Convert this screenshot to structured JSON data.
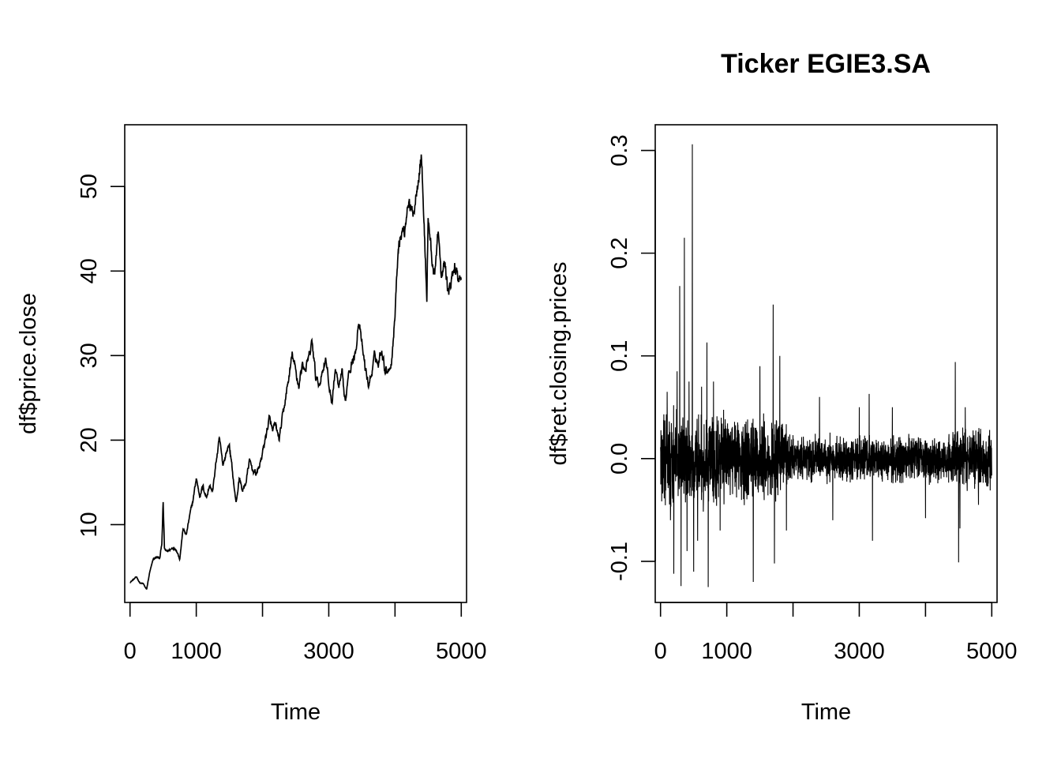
{
  "figure": {
    "title": "Ticker EGIE3.SA"
  },
  "chart_data": [
    {
      "type": "line",
      "title": "",
      "xlabel": "Time",
      "ylabel": "df$price.close",
      "xlim": [
        -80,
        5080
      ],
      "ylim": [
        0.8,
        57.3
      ],
      "xticks": [
        0,
        1000,
        2000,
        3000,
        4000,
        5000
      ],
      "xtick_labels": [
        "0",
        "1000",
        "",
        "3000",
        "",
        "5000"
      ],
      "yticks": [
        10,
        20,
        30,
        40,
        50
      ],
      "ytick_labels": [
        "10",
        "20",
        "30",
        "40",
        "50"
      ],
      "grid": false,
      "legend": "none",
      "line_color": "#000000",
      "series": [
        {
          "x": [
            0,
            100,
            150,
            200,
            250,
            300,
            350,
            400,
            450,
            480,
            500,
            520,
            550,
            600,
            650,
            700,
            750,
            800,
            850,
            900,
            950,
            1000,
            1050,
            1100,
            1150,
            1200,
            1250,
            1300,
            1350,
            1400,
            1450,
            1500,
            1550,
            1600,
            1650,
            1700,
            1750,
            1800,
            1850,
            1900,
            1950,
            2000,
            2050,
            2100,
            2150,
            2200,
            2250,
            2300,
            2350,
            2400,
            2450,
            2500,
            2550,
            2600,
            2650,
            2700,
            2750,
            2800,
            2850,
            2900,
            2950,
            3000,
            3050,
            3100,
            3150,
            3200,
            3250,
            3300,
            3350,
            3400,
            3450,
            3500,
            3550,
            3600,
            3650,
            3700,
            3750,
            3800,
            3850,
            3900,
            3950,
            4000,
            4050,
            4100,
            4150,
            4200,
            4250,
            4300,
            4350,
            4400,
            4450,
            4480,
            4500,
            4550,
            4600,
            4650,
            4700,
            4750,
            4800,
            4850,
            4900,
            4950,
            5000
          ],
          "y": [
            3.2,
            3.8,
            3.1,
            3.0,
            2.3,
            4.5,
            5.8,
            6.2,
            6.0,
            7.8,
            12.6,
            7.1,
            6.8,
            7.0,
            7.3,
            7.1,
            6.0,
            9.5,
            8.8,
            11.0,
            12.8,
            15.5,
            13.5,
            14.5,
            13.3,
            14.6,
            14.0,
            17.5,
            20.0,
            17.0,
            18.5,
            19.5,
            16.0,
            12.5,
            15.5,
            14.0,
            15.0,
            17.5,
            16.5,
            16.0,
            16.8,
            18.5,
            20.5,
            22.5,
            21.0,
            21.5,
            20.0,
            22.5,
            25.0,
            27.5,
            30.0,
            28.0,
            26.5,
            29.0,
            28.5,
            29.5,
            31.5,
            27.5,
            26.5,
            28.0,
            30.0,
            26.5,
            24.5,
            28.5,
            26.0,
            27.5,
            24.0,
            28.5,
            29.5,
            30.0,
            34.5,
            31.0,
            28.5,
            26.5,
            28.0,
            30.0,
            29.0,
            31.0,
            28.5,
            28.5,
            29.5,
            35.0,
            43.5,
            44.5,
            45.0,
            49.0,
            46.5,
            48.0,
            52.0,
            54.0,
            43.0,
            37.0,
            46.5,
            42.0,
            39.0,
            45.5,
            38.5,
            41.0,
            37.5,
            38.5,
            41.0,
            39.0,
            39.5
          ]
        }
      ]
    },
    {
      "type": "line",
      "title": "Ticker EGIE3.SA",
      "xlabel": "Time",
      "ylabel": "df$ret.closing.prices",
      "xlim": [
        -80,
        5080
      ],
      "ylim": [
        -0.14,
        0.325
      ],
      "xticks": [
        0,
        1000,
        2000,
        3000,
        4000,
        5000
      ],
      "xtick_labels": [
        "0",
        "1000",
        "",
        "3000",
        "",
        "5000"
      ],
      "yticks": [
        -0.1,
        0.0,
        0.1,
        0.2,
        0.3
      ],
      "ytick_labels": [
        "-0.1",
        "0.0",
        "0.1",
        "0.2",
        "0.3"
      ],
      "grid": false,
      "legend": "none",
      "line_color": "#000000",
      "spikes": [
        {
          "x": 100,
          "y": 0.065
        },
        {
          "x": 150,
          "y": -0.06
        },
        {
          "x": 200,
          "y": -0.112
        },
        {
          "x": 250,
          "y": 0.085
        },
        {
          "x": 290,
          "y": 0.168
        },
        {
          "x": 310,
          "y": -0.124
        },
        {
          "x": 360,
          "y": 0.215
        },
        {
          "x": 400,
          "y": -0.09
        },
        {
          "x": 430,
          "y": 0.075
        },
        {
          "x": 480,
          "y": 0.306
        },
        {
          "x": 500,
          "y": -0.11
        },
        {
          "x": 560,
          "y": -0.08
        },
        {
          "x": 620,
          "y": 0.07
        },
        {
          "x": 700,
          "y": 0.113
        },
        {
          "x": 720,
          "y": -0.125
        },
        {
          "x": 800,
          "y": 0.075
        },
        {
          "x": 900,
          "y": -0.07
        },
        {
          "x": 1400,
          "y": -0.12
        },
        {
          "x": 1500,
          "y": 0.09
        },
        {
          "x": 1700,
          "y": 0.15
        },
        {
          "x": 1720,
          "y": -0.102
        },
        {
          "x": 1800,
          "y": 0.1
        },
        {
          "x": 1900,
          "y": -0.07
        },
        {
          "x": 2400,
          "y": 0.06
        },
        {
          "x": 2600,
          "y": -0.06
        },
        {
          "x": 3000,
          "y": 0.05
        },
        {
          "x": 3150,
          "y": 0.063
        },
        {
          "x": 3200,
          "y": -0.08
        },
        {
          "x": 3500,
          "y": 0.05
        },
        {
          "x": 4000,
          "y": -0.058
        },
        {
          "x": 4450,
          "y": 0.094
        },
        {
          "x": 4500,
          "y": -0.101
        },
        {
          "x": 4520,
          "y": -0.068
        },
        {
          "x": 4600,
          "y": 0.05
        },
        {
          "x": 4800,
          "y": -0.045
        }
      ]
    }
  ]
}
